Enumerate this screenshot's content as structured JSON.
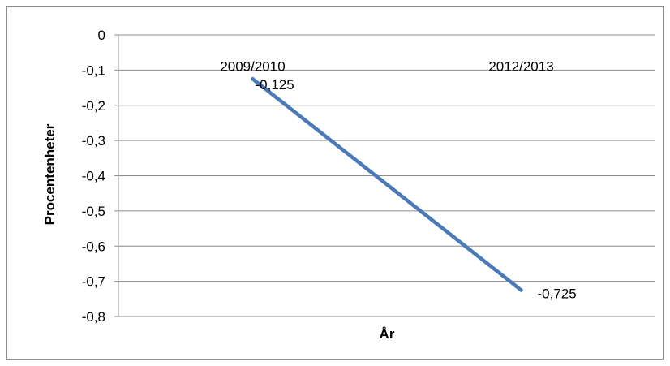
{
  "chart_data": {
    "type": "line",
    "categories": [
      "2009/2010",
      "2012/2013"
    ],
    "series": [
      {
        "values": [
          -0.125,
          -0.725
        ],
        "data_labels": [
          "-0,125",
          "-0,725"
        ],
        "color": "#4a7ab8"
      }
    ],
    "xlabel": "År",
    "ylabel": "Procentenheter",
    "ylim": [
      -0.8,
      0
    ],
    "yticks": [
      0,
      -0.1,
      -0.2,
      -0.3,
      -0.4,
      -0.5,
      -0.6,
      -0.7,
      -0.8
    ],
    "ytick_labels": [
      "0",
      "-0,1",
      "-0,2",
      "-0,3",
      "-0,4",
      "-0,5",
      "-0,6",
      "-0,7",
      "-0,8"
    ],
    "category_labels_position": "top",
    "grid": true,
    "legend": false,
    "colors": {
      "line": "#4a7ab8",
      "grid": "#8c8c8c",
      "border": "#8c8c8c"
    }
  }
}
